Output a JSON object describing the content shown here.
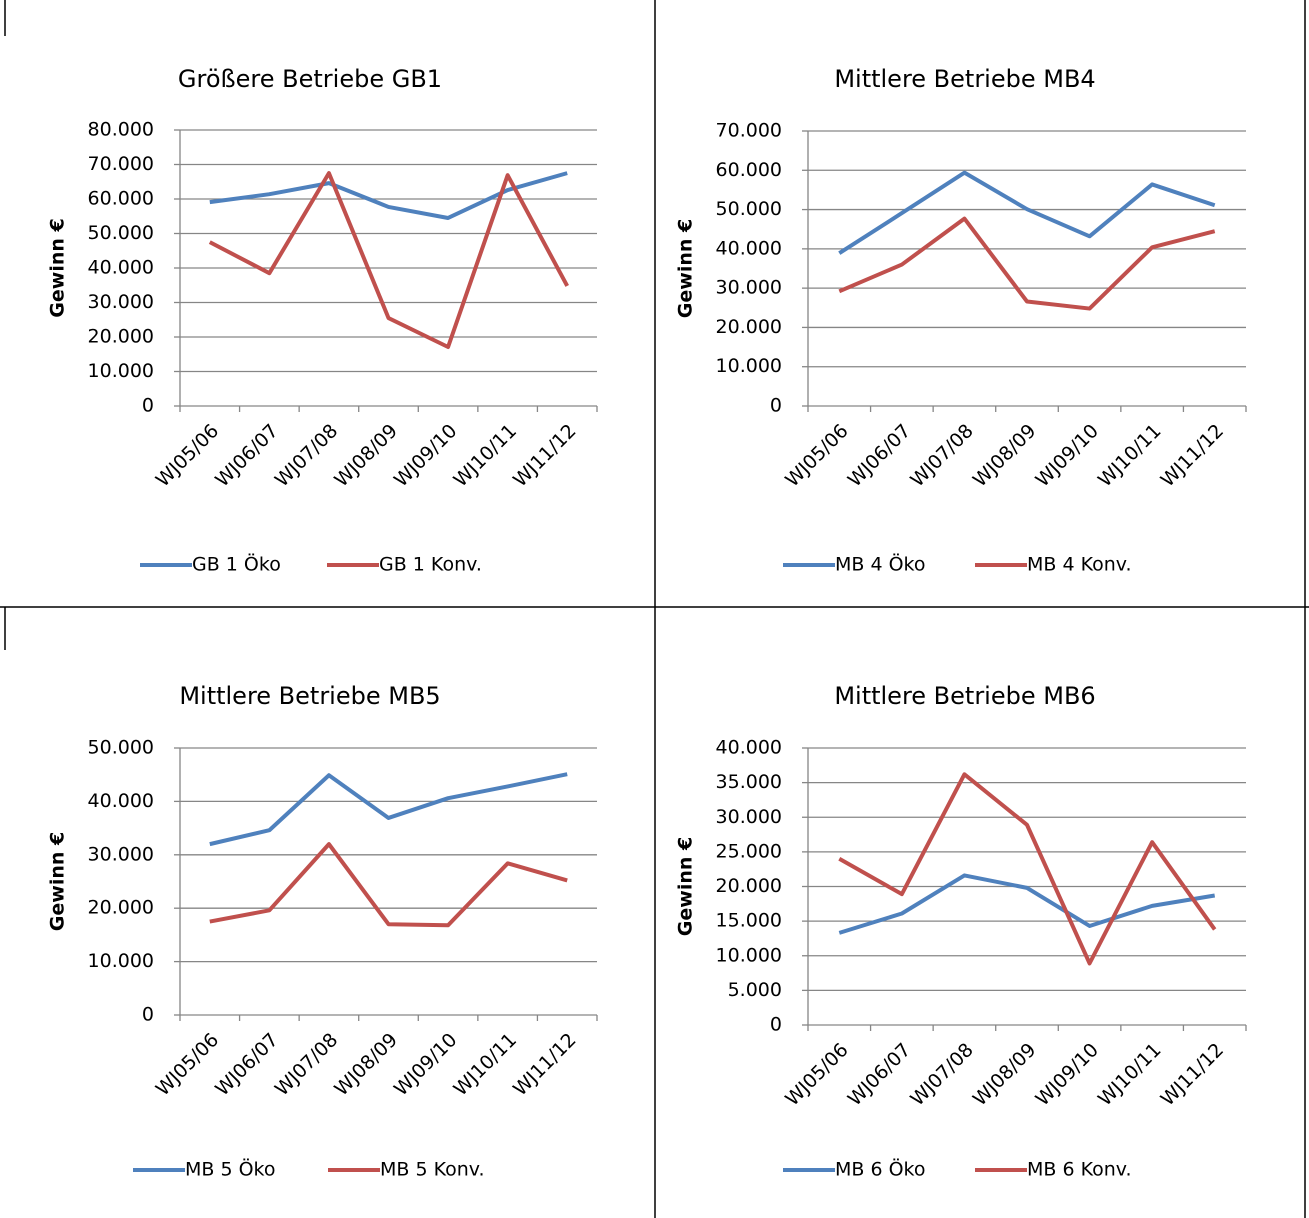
{
  "chart_data": [
    {
      "type": "line",
      "title": "Größere Betriebe GB1",
      "y_label": "Gewinn €",
      "categories": [
        "WJ05/06",
        "WJ06/07",
        "WJ07/08",
        "WJ08/09",
        "WJ09/10",
        "WJ10/11",
        "WJ11/12"
      ],
      "series": [
        {
          "name": "GB 1 Öko",
          "color": "#4f81bd",
          "values": [
            59100,
            61400,
            64600,
            57700,
            54500,
            62600,
            67500
          ]
        },
        {
          "name": "GB 1 Konv.",
          "color": "#c0504d",
          "values": [
            47500,
            38500,
            67500,
            25500,
            17100,
            66900,
            34800
          ]
        }
      ],
      "ylim": [
        0,
        80000
      ],
      "yticks": [
        0,
        {
          "value": 10000,
          "label": "10.000"
        },
        {
          "value": 20000,
          "label": "20.000"
        },
        {
          "value": 30000,
          "label": "30.000"
        },
        {
          "value": 40000,
          "label": "40.000"
        },
        {
          "value": 50000,
          "label": "50.000"
        },
        {
          "value": 60000,
          "label": "60.000"
        },
        {
          "value": 70000,
          "label": "70.000"
        },
        {
          "value": 80000,
          "label": "80.000"
        }
      ],
      "grid": true,
      "legend": "bottom"
    },
    {
      "type": "line",
      "title": "Mittlere Betriebe MB4",
      "y_label": "Gewinn €",
      "categories": [
        "WJ05/06",
        "WJ06/07",
        "WJ07/08",
        "WJ08/09",
        "WJ09/10",
        "WJ10/11",
        "WJ11/12"
      ],
      "series": [
        {
          "name": "MB 4 Öko",
          "color": "#4f81bd",
          "values": [
            38900,
            49100,
            59400,
            50100,
            43200,
            56400,
            51100
          ]
        },
        {
          "name": "MB 4 Konv.",
          "color": "#c0504d",
          "values": [
            29200,
            36000,
            47700,
            26600,
            24800,
            40400,
            44500
          ]
        }
      ],
      "ylim": [
        0,
        70000
      ],
      "yticks": [
        0,
        {
          "value": 10000,
          "label": "10.000"
        },
        {
          "value": 20000,
          "label": "20.000"
        },
        {
          "value": 30000,
          "label": "30.000"
        },
        {
          "value": 40000,
          "label": "40.000"
        },
        {
          "value": 50000,
          "label": "50.000"
        },
        {
          "value": 60000,
          "label": "60.000"
        },
        {
          "value": 70000,
          "label": "70.000"
        }
      ],
      "grid": true,
      "legend": "bottom"
    },
    {
      "type": "line",
      "title": "Mittlere Betriebe MB5",
      "y_label": "Gewinn €",
      "categories": [
        "WJ05/06",
        "WJ06/07",
        "WJ07/08",
        "WJ08/09",
        "WJ09/10",
        "WJ10/11",
        "WJ11/12"
      ],
      "series": [
        {
          "name": "MB 5 Öko",
          "color": "#4f81bd",
          "values": [
            32000,
            34600,
            44900,
            36900,
            40600,
            42800,
            45100
          ]
        },
        {
          "name": "MB 5 Konv.",
          "color": "#c0504d",
          "values": [
            17500,
            19600,
            32000,
            17000,
            16800,
            28400,
            25200
          ]
        }
      ],
      "ylim": [
        0,
        50000
      ],
      "yticks": [
        0,
        {
          "value": 10000,
          "label": "10.000"
        },
        {
          "value": 20000,
          "label": "20.000"
        },
        {
          "value": 30000,
          "label": "30.000"
        },
        {
          "value": 40000,
          "label": "40.000"
        },
        {
          "value": 50000,
          "label": "50.000"
        }
      ],
      "grid": true,
      "legend": "bottom"
    },
    {
      "type": "line",
      "title": "Mittlere Betriebe MB6",
      "y_label": "Gewinn €",
      "categories": [
        "WJ05/06",
        "WJ06/07",
        "WJ07/08",
        "WJ08/09",
        "WJ09/10",
        "WJ10/11",
        "WJ11/12"
      ],
      "series": [
        {
          "name": "MB 6 Öko",
          "color": "#4f81bd",
          "values": [
            13300,
            16100,
            21600,
            19800,
            14300,
            17200,
            18700
          ]
        },
        {
          "name": "MB 6 Konv.",
          "color": "#c0504d",
          "values": [
            24000,
            18900,
            36200,
            28900,
            8900,
            26400,
            13800
          ]
        }
      ],
      "ylim": [
        0,
        40000
      ],
      "yticks": [
        0,
        {
          "value": 5000,
          "label": "5.000"
        },
        {
          "value": 10000,
          "label": "10.000"
        },
        {
          "value": 15000,
          "label": "15.000"
        },
        {
          "value": 20000,
          "label": "20.000"
        },
        {
          "value": 25000,
          "label": "25.000"
        },
        {
          "value": 30000,
          "label": "30.000"
        },
        {
          "value": 35000,
          "label": "35.000"
        },
        {
          "value": 40000,
          "label": "40.000"
        }
      ],
      "grid": true,
      "legend": "bottom"
    }
  ]
}
